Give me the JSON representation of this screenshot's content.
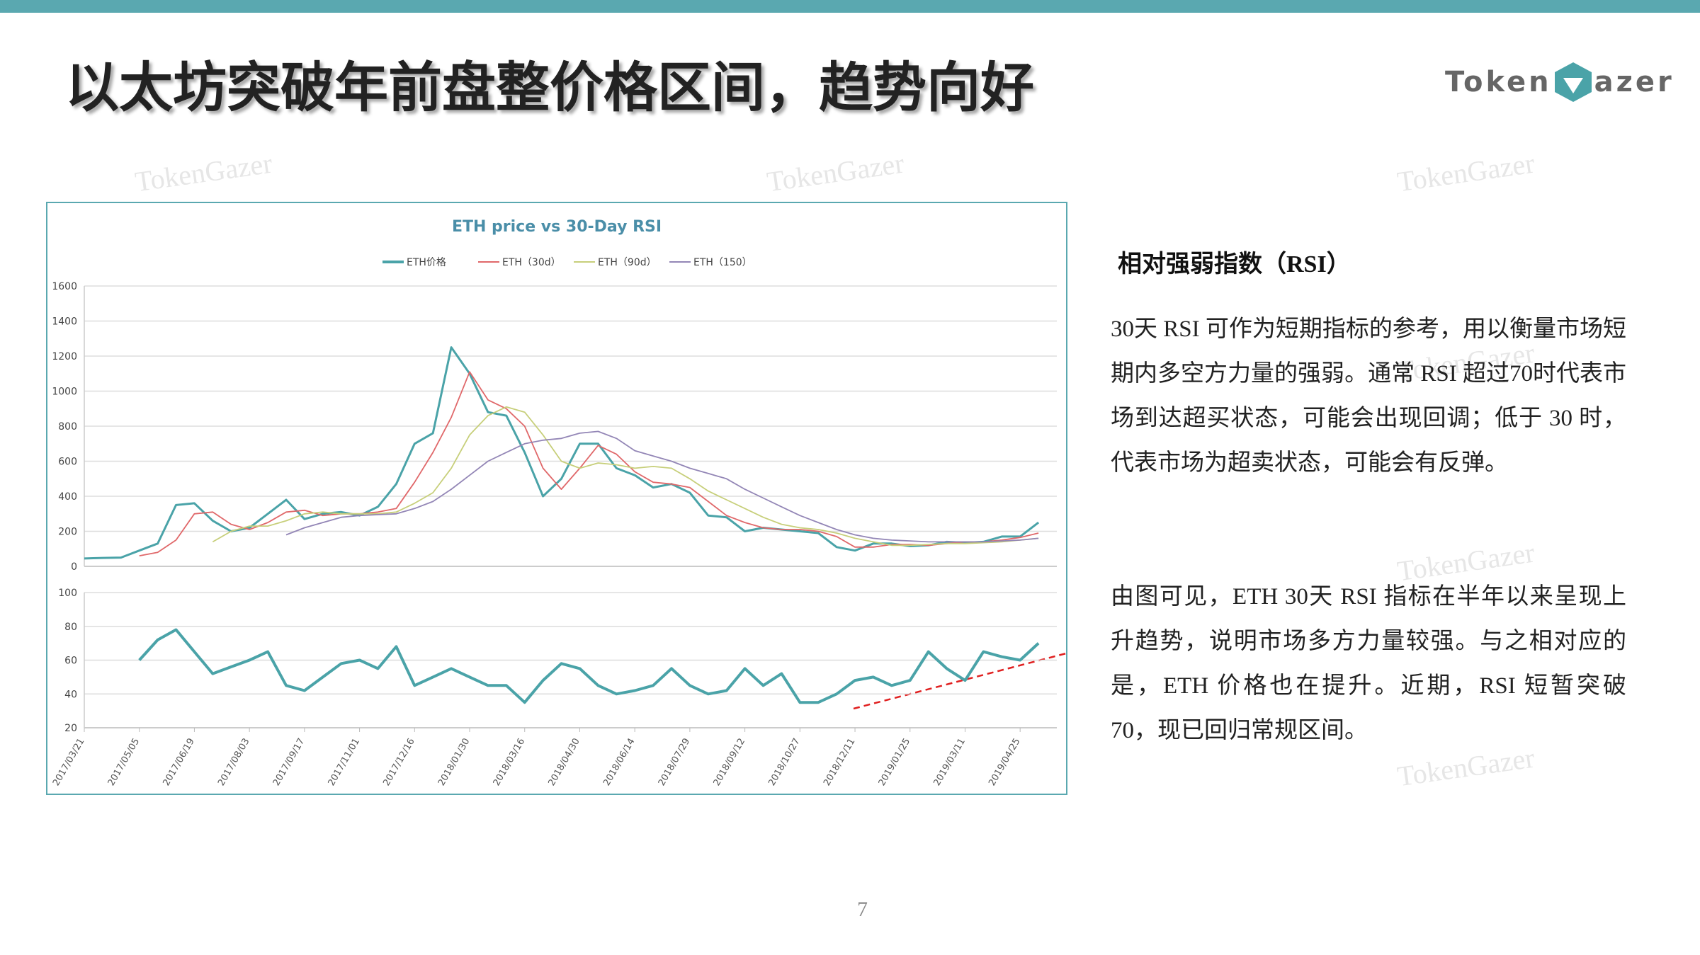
{
  "header": {
    "title": "以太坊突破年前盘整价格区间，趋势向好",
    "logo": [
      "Token",
      "azer"
    ]
  },
  "watermark": "TokenGazer",
  "chart_title": "ETH price vs 30-Day RSI",
  "chart_data": [
    {
      "type": "line",
      "x": [
        "2017/03/21",
        "2017/04/05",
        "2017/04/20",
        "2017/05/05",
        "2017/05/20",
        "2017/06/04",
        "2017/06/19",
        "2017/07/04",
        "2017/07/19",
        "2017/08/03",
        "2017/08/18",
        "2017/09/02",
        "2017/09/17",
        "2017/10/02",
        "2017/10/17",
        "2017/11/01",
        "2017/11/16",
        "2017/12/01",
        "2017/12/16",
        "2017/12/31",
        "2018/01/15",
        "2018/01/30",
        "2018/02/14",
        "2018/03/01",
        "2018/03/16",
        "2018/03/31",
        "2018/04/15",
        "2018/04/30",
        "2018/05/15",
        "2018/05/30",
        "2018/06/14",
        "2018/06/29",
        "2018/07/14",
        "2018/07/29",
        "2018/08/13",
        "2018/08/28",
        "2018/09/12",
        "2018/09/27",
        "2018/10/12",
        "2018/10/27",
        "2018/11/11",
        "2018/11/26",
        "2018/12/11",
        "2018/12/26",
        "2019/01/10",
        "2019/01/25",
        "2019/02/09",
        "2019/02/24",
        "2019/03/11",
        "2019/03/26",
        "2019/04/10",
        "2019/04/25",
        "2019/05/10"
      ],
      "xlim": [
        "2017/03/21",
        "2019/05/25"
      ],
      "ylim": [
        0,
        1600
      ],
      "yticks": [
        0,
        200,
        400,
        600,
        800,
        1000,
        1200,
        1400,
        1600
      ],
      "grid": true,
      "series": [
        {
          "name": "ETH价格",
          "color": "#4aa3a8",
          "values": [
            45,
            48,
            50,
            90,
            130,
            350,
            360,
            260,
            200,
            220,
            300,
            380,
            270,
            300,
            310,
            290,
            340,
            470,
            700,
            760,
            1250,
            1100,
            880,
            860,
            650,
            400,
            500,
            700,
            700,
            560,
            520,
            450,
            470,
            420,
            290,
            280,
            200,
            220,
            210,
            200,
            190,
            110,
            90,
            130,
            130,
            115,
            120,
            140,
            135,
            140,
            170,
            170,
            250
          ]
        },
        {
          "name": "ETH（30d）",
          "color": "#e0686a",
          "values": [
            null,
            null,
            null,
            60,
            80,
            150,
            300,
            310,
            240,
            210,
            250,
            310,
            320,
            290,
            300,
            300,
            310,
            330,
            480,
            650,
            850,
            1110,
            950,
            900,
            800,
            560,
            440,
            560,
            690,
            640,
            540,
            480,
            470,
            450,
            370,
            290,
            250,
            220,
            210,
            210,
            200,
            170,
            110,
            110,
            125,
            125,
            120,
            130,
            140,
            140,
            150,
            165,
            190
          ]
        },
        {
          "name": "ETH（90d）",
          "color": "#c7cf7a",
          "values": [
            null,
            null,
            null,
            null,
            null,
            null,
            null,
            140,
            200,
            230,
            230,
            260,
            300,
            310,
            300,
            300,
            300,
            310,
            360,
            420,
            560,
            750,
            860,
            910,
            880,
            750,
            600,
            560,
            590,
            580,
            560,
            570,
            560,
            500,
            430,
            380,
            330,
            280,
            240,
            220,
            210,
            190,
            160,
            140,
            120,
            120,
            125,
            130,
            130,
            135,
            140,
            150,
            160
          ]
        },
        {
          "name": "ETH（150）",
          "color": "#9386b6",
          "values": [
            null,
            null,
            null,
            null,
            null,
            null,
            null,
            null,
            null,
            null,
            null,
            180,
            220,
            250,
            280,
            290,
            295,
            300,
            330,
            370,
            440,
            520,
            600,
            650,
            700,
            720,
            730,
            760,
            770,
            730,
            660,
            630,
            600,
            560,
            530,
            500,
            440,
            390,
            340,
            290,
            250,
            210,
            180,
            160,
            150,
            145,
            140,
            140,
            140,
            140,
            145,
            150,
            160
          ]
        }
      ],
      "legend": "top"
    },
    {
      "type": "line",
      "x": [
        "2017/03/21",
        "2017/04/05",
        "2017/04/20",
        "2017/05/05",
        "2017/05/20",
        "2017/06/04",
        "2017/06/19",
        "2017/07/04",
        "2017/07/19",
        "2017/08/03",
        "2017/08/18",
        "2017/09/02",
        "2017/09/17",
        "2017/10/02",
        "2017/10/17",
        "2017/11/01",
        "2017/11/16",
        "2017/12/01",
        "2017/12/16",
        "2017/12/31",
        "2018/01/15",
        "2018/01/30",
        "2018/02/14",
        "2018/03/01",
        "2018/03/16",
        "2018/03/31",
        "2018/04/15",
        "2018/04/30",
        "2018/05/15",
        "2018/05/30",
        "2018/06/14",
        "2018/06/29",
        "2018/07/14",
        "2018/07/29",
        "2018/08/13",
        "2018/08/28",
        "2018/09/12",
        "2018/09/27",
        "2018/10/12",
        "2018/10/27",
        "2018/11/11",
        "2018/11/26",
        "2018/12/11",
        "2018/12/26",
        "2019/01/10",
        "2019/01/25",
        "2019/02/09",
        "2019/02/24",
        "2019/03/11",
        "2019/03/26",
        "2019/04/10",
        "2019/04/25",
        "2019/05/10"
      ],
      "xlim": [
        "2017/03/21",
        "2019/05/25"
      ],
      "xticks": [
        "2017/03/21",
        "2017/05/05",
        "2017/06/19",
        "2017/08/03",
        "2017/09/17",
        "2017/11/01",
        "2017/12/16",
        "2018/01/30",
        "2018/03/16",
        "2018/04/30",
        "2018/06/14",
        "2018/07/29",
        "2018/09/12",
        "2018/10/27",
        "2018/12/11",
        "2019/01/25",
        "2019/03/11",
        "2019/04/25"
      ],
      "ylim": [
        20,
        100
      ],
      "yticks": [
        20,
        40,
        60,
        80,
        100
      ],
      "grid": true,
      "series": [
        {
          "color": "#4aa3a8",
          "values": [
            null,
            null,
            null,
            60,
            72,
            78,
            65,
            52,
            56,
            60,
            65,
            45,
            42,
            50,
            58,
            60,
            55,
            68,
            45,
            50,
            55,
            50,
            45,
            45,
            35,
            48,
            58,
            55,
            45,
            40,
            42,
            45,
            55,
            45,
            40,
            42,
            55,
            45,
            52,
            35,
            35,
            40,
            48,
            50,
            45,
            48,
            65,
            55,
            48,
            65,
            62,
            60,
            70
          ]
        }
      ]
    }
  ],
  "section": {
    "heading": "相对强弱指数（RSI）",
    "paragraphs": [
      "30天 RSI 可作为短期指标的参考，用以衡量市场短期内多空方力量的强弱。通常 RSI 超过70时代表市场到达超买状态，可能会出现回调；低于 30 时，代表市场为超卖状态，可能会有反弹。",
      "由图可见，ETH 30天 RSI 指标在半年以来呈现上升趋势，说明市场多方力量较强。与之相对应的是，ETH 价格也在提升。近期，RSI 短暂突破 70，现已回归常规区间。"
    ]
  },
  "page_number": "7"
}
